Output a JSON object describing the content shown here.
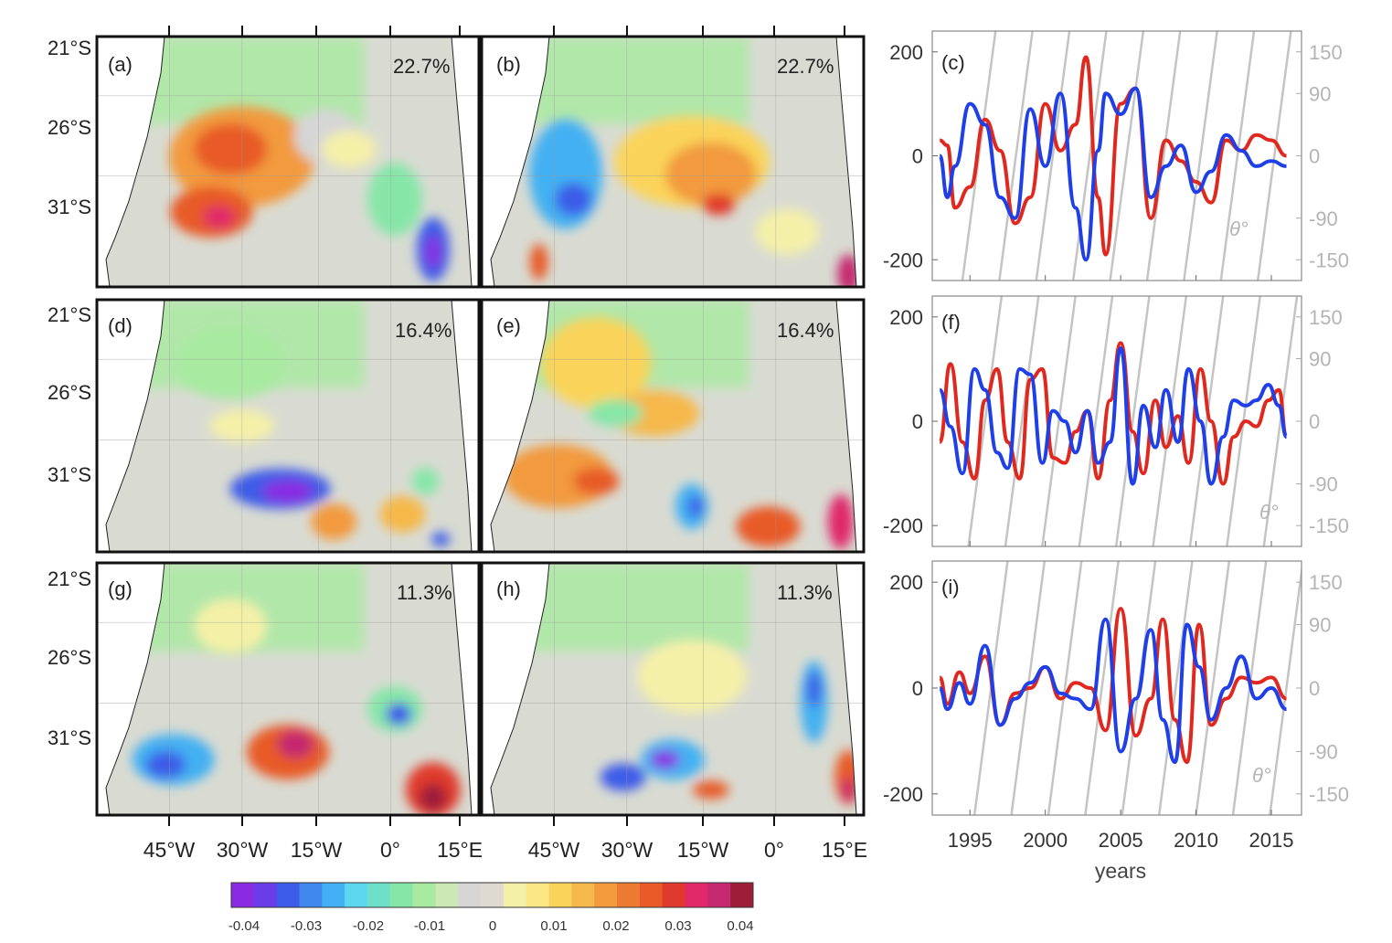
{
  "figure": {
    "maps": [
      {
        "tag": "(a)",
        "percent": "22.7%"
      },
      {
        "tag": "(b)",
        "percent": "22.7%"
      },
      {
        "tag": "(d)",
        "percent": "16.4%"
      },
      {
        "tag": "(e)",
        "percent": "16.4%"
      },
      {
        "tag": "(g)",
        "percent": "11.3%"
      },
      {
        "tag": "(h)",
        "percent": "11.3%"
      }
    ],
    "lat_labels": [
      "21°S",
      "26°S",
      "31°S"
    ],
    "lon_labels": [
      "45°W",
      "30°W",
      "15°W",
      "0°",
      "15°E"
    ],
    "colorbar": {
      "ticks": [
        "-0.04",
        "-0.03",
        "-0.02",
        "-0.01",
        "0",
        "0.01",
        "0.02",
        "0.03",
        "0.04"
      ],
      "colors": [
        "#8a2be2",
        "#6a3de8",
        "#3d5ce8",
        "#3f86ef",
        "#42b0f2",
        "#5bd8f0",
        "#6fe0c8",
        "#86e6a8",
        "#a8eaa0",
        "#cde8b6",
        "#d6d6d6",
        "#dedad0",
        "#f5f0a8",
        "#fbe884",
        "#fad45a",
        "#f6b84a",
        "#f29a3c",
        "#ec7a30",
        "#e85a28",
        "#e03a2c",
        "#e0286a",
        "#c4286e",
        "#9e1e3a"
      ]
    }
  },
  "chart_data": [
    {
      "type": "line",
      "panel": "(c)",
      "xlabel": "years",
      "x_ticks": [
        1995,
        2000,
        2005,
        2010,
        2015
      ],
      "left_ticks": [
        200,
        0,
        -200
      ],
      "right_ticks": [
        150,
        90,
        0,
        -90,
        -150
      ],
      "ylim_left": [
        -240,
        240
      ],
      "right_axis_label": "θ°",
      "series": [
        {
          "color": "#e0281e",
          "x": [
            1993,
            1993.5,
            1994,
            1995,
            1996,
            1997,
            1998,
            1999,
            2000,
            2001,
            2002,
            2002.7,
            2003.5,
            2004,
            2005,
            2006,
            2007,
            2008,
            2009,
            2010,
            2011,
            2012,
            2013,
            2014,
            2015,
            2016
          ],
          "y": [
            30,
            20,
            -100,
            -60,
            70,
            10,
            -130,
            -80,
            100,
            10,
            60,
            190,
            -80,
            -190,
            100,
            130,
            -120,
            30,
            -10,
            -50,
            -90,
            30,
            10,
            40,
            30,
            0
          ]
        },
        {
          "color": "#1f3fe8",
          "x": [
            1993,
            1993.5,
            1994,
            1995,
            1996,
            1997,
            1998,
            1999,
            2000,
            2001,
            2002,
            2002.7,
            2003.5,
            2004,
            2005,
            2006,
            2007,
            2008,
            2009,
            2010,
            2011,
            2012,
            2013,
            2014,
            2015,
            2016
          ],
          "y": [
            0,
            -80,
            -20,
            100,
            60,
            -80,
            -120,
            90,
            -20,
            120,
            -100,
            -200,
            10,
            120,
            80,
            130,
            -80,
            -20,
            20,
            -70,
            -30,
            40,
            10,
            -20,
            -10,
            -20
          ]
        }
      ]
    },
    {
      "type": "line",
      "panel": "(f)",
      "xlabel": "years",
      "x_ticks": [
        1995,
        2000,
        2005,
        2010,
        2015
      ],
      "left_ticks": [
        200,
        0,
        -200
      ],
      "right_ticks": [
        150,
        90,
        0,
        -90,
        -150
      ],
      "ylim_left": [
        -240,
        240
      ],
      "right_axis_label": "θ°",
      "series": [
        {
          "color": "#e0281e",
          "x": [
            1993,
            1993.7,
            1994.5,
            1995.3,
            1996,
            1996.8,
            1997.5,
            1998.3,
            1999,
            1999.8,
            2000.5,
            2001.3,
            2002,
            2002.8,
            2003.5,
            2004.3,
            2005,
            2005.8,
            2006.5,
            2007.3,
            2008,
            2008.8,
            2009.5,
            2010.3,
            2011,
            2011.8,
            2012.5,
            2013.3,
            2014,
            2014.8,
            2015.5,
            2016
          ],
          "y": [
            -40,
            110,
            -40,
            -110,
            40,
            100,
            -40,
            -110,
            80,
            100,
            -70,
            -80,
            -20,
            20,
            -110,
            40,
            150,
            -20,
            -100,
            40,
            -50,
            10,
            -80,
            100,
            0,
            -120,
            -30,
            0,
            -10,
            40,
            60,
            -30
          ]
        },
        {
          "color": "#1f3fe8",
          "x": [
            1993,
            1993.7,
            1994.5,
            1995.3,
            1996,
            1996.8,
            1997.5,
            1998.3,
            1999,
            1999.8,
            2000.5,
            2001.3,
            2002,
            2002.8,
            2003.5,
            2004.3,
            2005,
            2005.8,
            2006.5,
            2007.3,
            2008,
            2008.8,
            2009.5,
            2010.3,
            2011,
            2011.8,
            2012.5,
            2013.3,
            2014,
            2014.8,
            2015.5,
            2016
          ],
          "y": [
            60,
            -10,
            -100,
            100,
            60,
            -60,
            -90,
            100,
            90,
            -80,
            20,
            0,
            -60,
            20,
            -80,
            -40,
            140,
            -120,
            30,
            -50,
            60,
            -40,
            100,
            0,
            -120,
            -30,
            40,
            30,
            40,
            70,
            30,
            -30
          ]
        }
      ]
    },
    {
      "type": "line",
      "panel": "(i)",
      "xlabel": "years",
      "x_ticks": [
        1995,
        2000,
        2005,
        2010,
        2015
      ],
      "left_ticks": [
        200,
        0,
        -200
      ],
      "right_ticks": [
        150,
        90,
        0,
        -90,
        -150
      ],
      "ylim_left": [
        -240,
        240
      ],
      "right_axis_label": "θ°",
      "series": [
        {
          "color": "#e0281e",
          "x": [
            1993,
            1993.5,
            1994.3,
            1995,
            1996,
            1997,
            1998,
            1999,
            2000,
            2001,
            2002,
            2003,
            2004,
            2005,
            2006,
            2007,
            2007.8,
            2008.6,
            2009.4,
            2010.2,
            2011,
            2012,
            2013,
            2014,
            2015,
            2016
          ],
          "y": [
            20,
            -30,
            30,
            -10,
            60,
            -70,
            -10,
            0,
            40,
            -20,
            10,
            0,
            -80,
            150,
            -90,
            -20,
            130,
            -60,
            -140,
            120,
            -70,
            -20,
            20,
            10,
            20,
            -20
          ]
        },
        {
          "color": "#1f3fe8",
          "x": [
            1993,
            1993.5,
            1994.3,
            1995,
            1996,
            1997,
            1998,
            1999,
            2000,
            2001,
            2002,
            2003,
            2004,
            2005,
            2006,
            2007,
            2007.8,
            2008.6,
            2009.4,
            2010.2,
            2011,
            2012,
            2013,
            2014,
            2015,
            2016
          ],
          "y": [
            0,
            -40,
            10,
            -30,
            80,
            -70,
            -20,
            10,
            40,
            -10,
            -20,
            -40,
            130,
            -120,
            -20,
            110,
            -60,
            -140,
            120,
            40,
            -60,
            0,
            60,
            -20,
            0,
            -40
          ]
        }
      ]
    }
  ]
}
